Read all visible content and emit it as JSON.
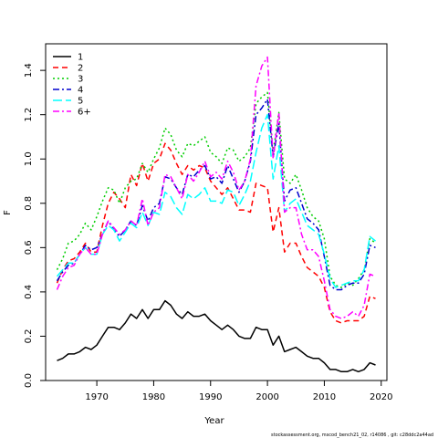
{
  "chart_data": {
    "type": "line",
    "xlabel": "Year",
    "ylabel": "F",
    "xlim": [
      1961,
      2021
    ],
    "ylim": [
      0,
      1.52
    ],
    "x_ticks": [
      1970,
      1980,
      1990,
      2000,
      2010,
      2020
    ],
    "y_ticks": [
      0.0,
      0.2,
      0.4,
      0.6,
      0.8,
      1.0,
      1.2,
      1.4
    ],
    "y_tick_labels": [
      "0.0",
      "0.2",
      "0.4",
      "0.6",
      "0.8",
      "1.0",
      "1.2",
      "1.4"
    ],
    "legend_position": "top-left",
    "x": [
      1963,
      1964,
      1965,
      1966,
      1967,
      1968,
      1969,
      1970,
      1971,
      1972,
      1973,
      1974,
      1975,
      1976,
      1977,
      1978,
      1979,
      1980,
      1981,
      1982,
      1983,
      1984,
      1985,
      1986,
      1987,
      1988,
      1989,
      1990,
      1991,
      1992,
      1993,
      1994,
      1995,
      1996,
      1997,
      1998,
      1999,
      2000,
      2001,
      2002,
      2003,
      2004,
      2005,
      2006,
      2007,
      2008,
      2009,
      2010,
      2011,
      2012,
      2013,
      2014,
      2015,
      2016,
      2017,
      2018,
      2019
    ],
    "series": [
      {
        "name": "1",
        "color": "#000000",
        "dash": "solid",
        "values": [
          0.09,
          0.1,
          0.12,
          0.12,
          0.13,
          0.15,
          0.14,
          0.16,
          0.2,
          0.24,
          0.24,
          0.23,
          0.26,
          0.3,
          0.28,
          0.32,
          0.28,
          0.32,
          0.32,
          0.36,
          0.34,
          0.3,
          0.28,
          0.31,
          0.29,
          0.29,
          0.3,
          0.27,
          0.25,
          0.23,
          0.25,
          0.23,
          0.2,
          0.19,
          0.19,
          0.24,
          0.23,
          0.23,
          0.16,
          0.2,
          0.13,
          0.14,
          0.15,
          0.13,
          0.11,
          0.1,
          0.1,
          0.08,
          0.05,
          0.05,
          0.04,
          0.04,
          0.05,
          0.04,
          0.05,
          0.08,
          0.07
        ]
      },
      {
        "name": "2",
        "color": "#ff0000",
        "dash": "6,4",
        "values": [
          0.44,
          0.5,
          0.54,
          0.55,
          0.58,
          0.62,
          0.58,
          0.58,
          0.7,
          0.8,
          0.85,
          0.82,
          0.78,
          0.93,
          0.88,
          0.98,
          0.9,
          0.98,
          1.0,
          1.07,
          1.04,
          0.98,
          0.93,
          0.97,
          0.95,
          0.97,
          0.96,
          0.9,
          0.87,
          0.84,
          0.87,
          0.82,
          0.77,
          0.77,
          0.76,
          0.89,
          0.88,
          0.87,
          0.67,
          0.78,
          0.58,
          0.62,
          0.62,
          0.56,
          0.51,
          0.49,
          0.47,
          0.42,
          0.31,
          0.27,
          0.26,
          0.27,
          0.27,
          0.27,
          0.29,
          0.38,
          0.37
        ]
      },
      {
        "name": "3",
        "color": "#00cd00",
        "dash": "2,3",
        "values": [
          0.5,
          0.55,
          0.62,
          0.63,
          0.66,
          0.71,
          0.68,
          0.74,
          0.81,
          0.87,
          0.86,
          0.8,
          0.87,
          0.9,
          0.91,
          0.98,
          0.94,
          1.0,
          1.05,
          1.14,
          1.11,
          1.04,
          1.01,
          1.07,
          1.06,
          1.08,
          1.1,
          1.03,
          1.01,
          0.98,
          1.05,
          1.04,
          0.99,
          1.01,
          1.05,
          1.25,
          1.28,
          1.3,
          1.03,
          1.21,
          0.91,
          0.89,
          0.93,
          0.86,
          0.78,
          0.74,
          0.72,
          0.64,
          0.47,
          0.43,
          0.42,
          0.44,
          0.43,
          0.46,
          0.5,
          0.64,
          0.62
        ]
      },
      {
        "name": "4",
        "color": "#0000cd",
        "dash": "7,3,2,3",
        "values": [
          0.45,
          0.49,
          0.52,
          0.53,
          0.57,
          0.61,
          0.59,
          0.6,
          0.66,
          0.72,
          0.68,
          0.65,
          0.68,
          0.72,
          0.7,
          0.79,
          0.72,
          0.78,
          0.8,
          0.92,
          0.91,
          0.87,
          0.84,
          0.93,
          0.92,
          0.95,
          0.97,
          0.91,
          0.92,
          0.89,
          0.97,
          0.91,
          0.85,
          0.9,
          0.99,
          1.2,
          1.23,
          1.27,
          1.01,
          1.16,
          0.81,
          0.86,
          0.87,
          0.8,
          0.73,
          0.71,
          0.68,
          0.56,
          0.43,
          0.41,
          0.41,
          0.43,
          0.44,
          0.44,
          0.48,
          0.61,
          0.6
        ]
      },
      {
        "name": "5",
        "color": "#00ffff",
        "dash": "10,4",
        "values": [
          0.47,
          0.5,
          0.53,
          0.53,
          0.57,
          0.6,
          0.57,
          0.57,
          0.66,
          0.7,
          0.68,
          0.63,
          0.67,
          0.71,
          0.69,
          0.76,
          0.7,
          0.76,
          0.75,
          0.85,
          0.83,
          0.78,
          0.75,
          0.84,
          0.82,
          0.84,
          0.87,
          0.81,
          0.81,
          0.8,
          0.86,
          0.85,
          0.79,
          0.84,
          0.9,
          1.03,
          1.14,
          1.2,
          0.91,
          1.06,
          0.76,
          0.8,
          0.82,
          0.76,
          0.7,
          0.68,
          0.66,
          0.57,
          0.46,
          0.42,
          0.43,
          0.44,
          0.45,
          0.45,
          0.5,
          0.65,
          0.63
        ]
      },
      {
        "name": "6+",
        "color": "#ff00ff",
        "dash": "7,3,2,3",
        "values": [
          0.41,
          0.47,
          0.51,
          0.52,
          0.57,
          0.6,
          0.57,
          0.57,
          0.66,
          0.72,
          0.69,
          0.66,
          0.68,
          0.72,
          0.7,
          0.82,
          0.7,
          0.76,
          0.78,
          0.93,
          0.92,
          0.87,
          0.82,
          0.93,
          0.9,
          0.94,
          0.99,
          0.92,
          0.94,
          0.91,
          0.99,
          0.94,
          0.86,
          0.9,
          1.0,
          1.33,
          1.42,
          1.46,
          1.0,
          1.21,
          0.76,
          0.78,
          0.78,
          0.66,
          0.59,
          0.59,
          0.56,
          0.45,
          0.32,
          0.29,
          0.28,
          0.29,
          0.31,
          0.29,
          0.34,
          0.48,
          0.47
        ]
      }
    ]
  },
  "footer": {
    "credit": "stockassessment.org,  mscod_bench21_02,  r14086 ,  git:  c28ddc2a44ad"
  }
}
